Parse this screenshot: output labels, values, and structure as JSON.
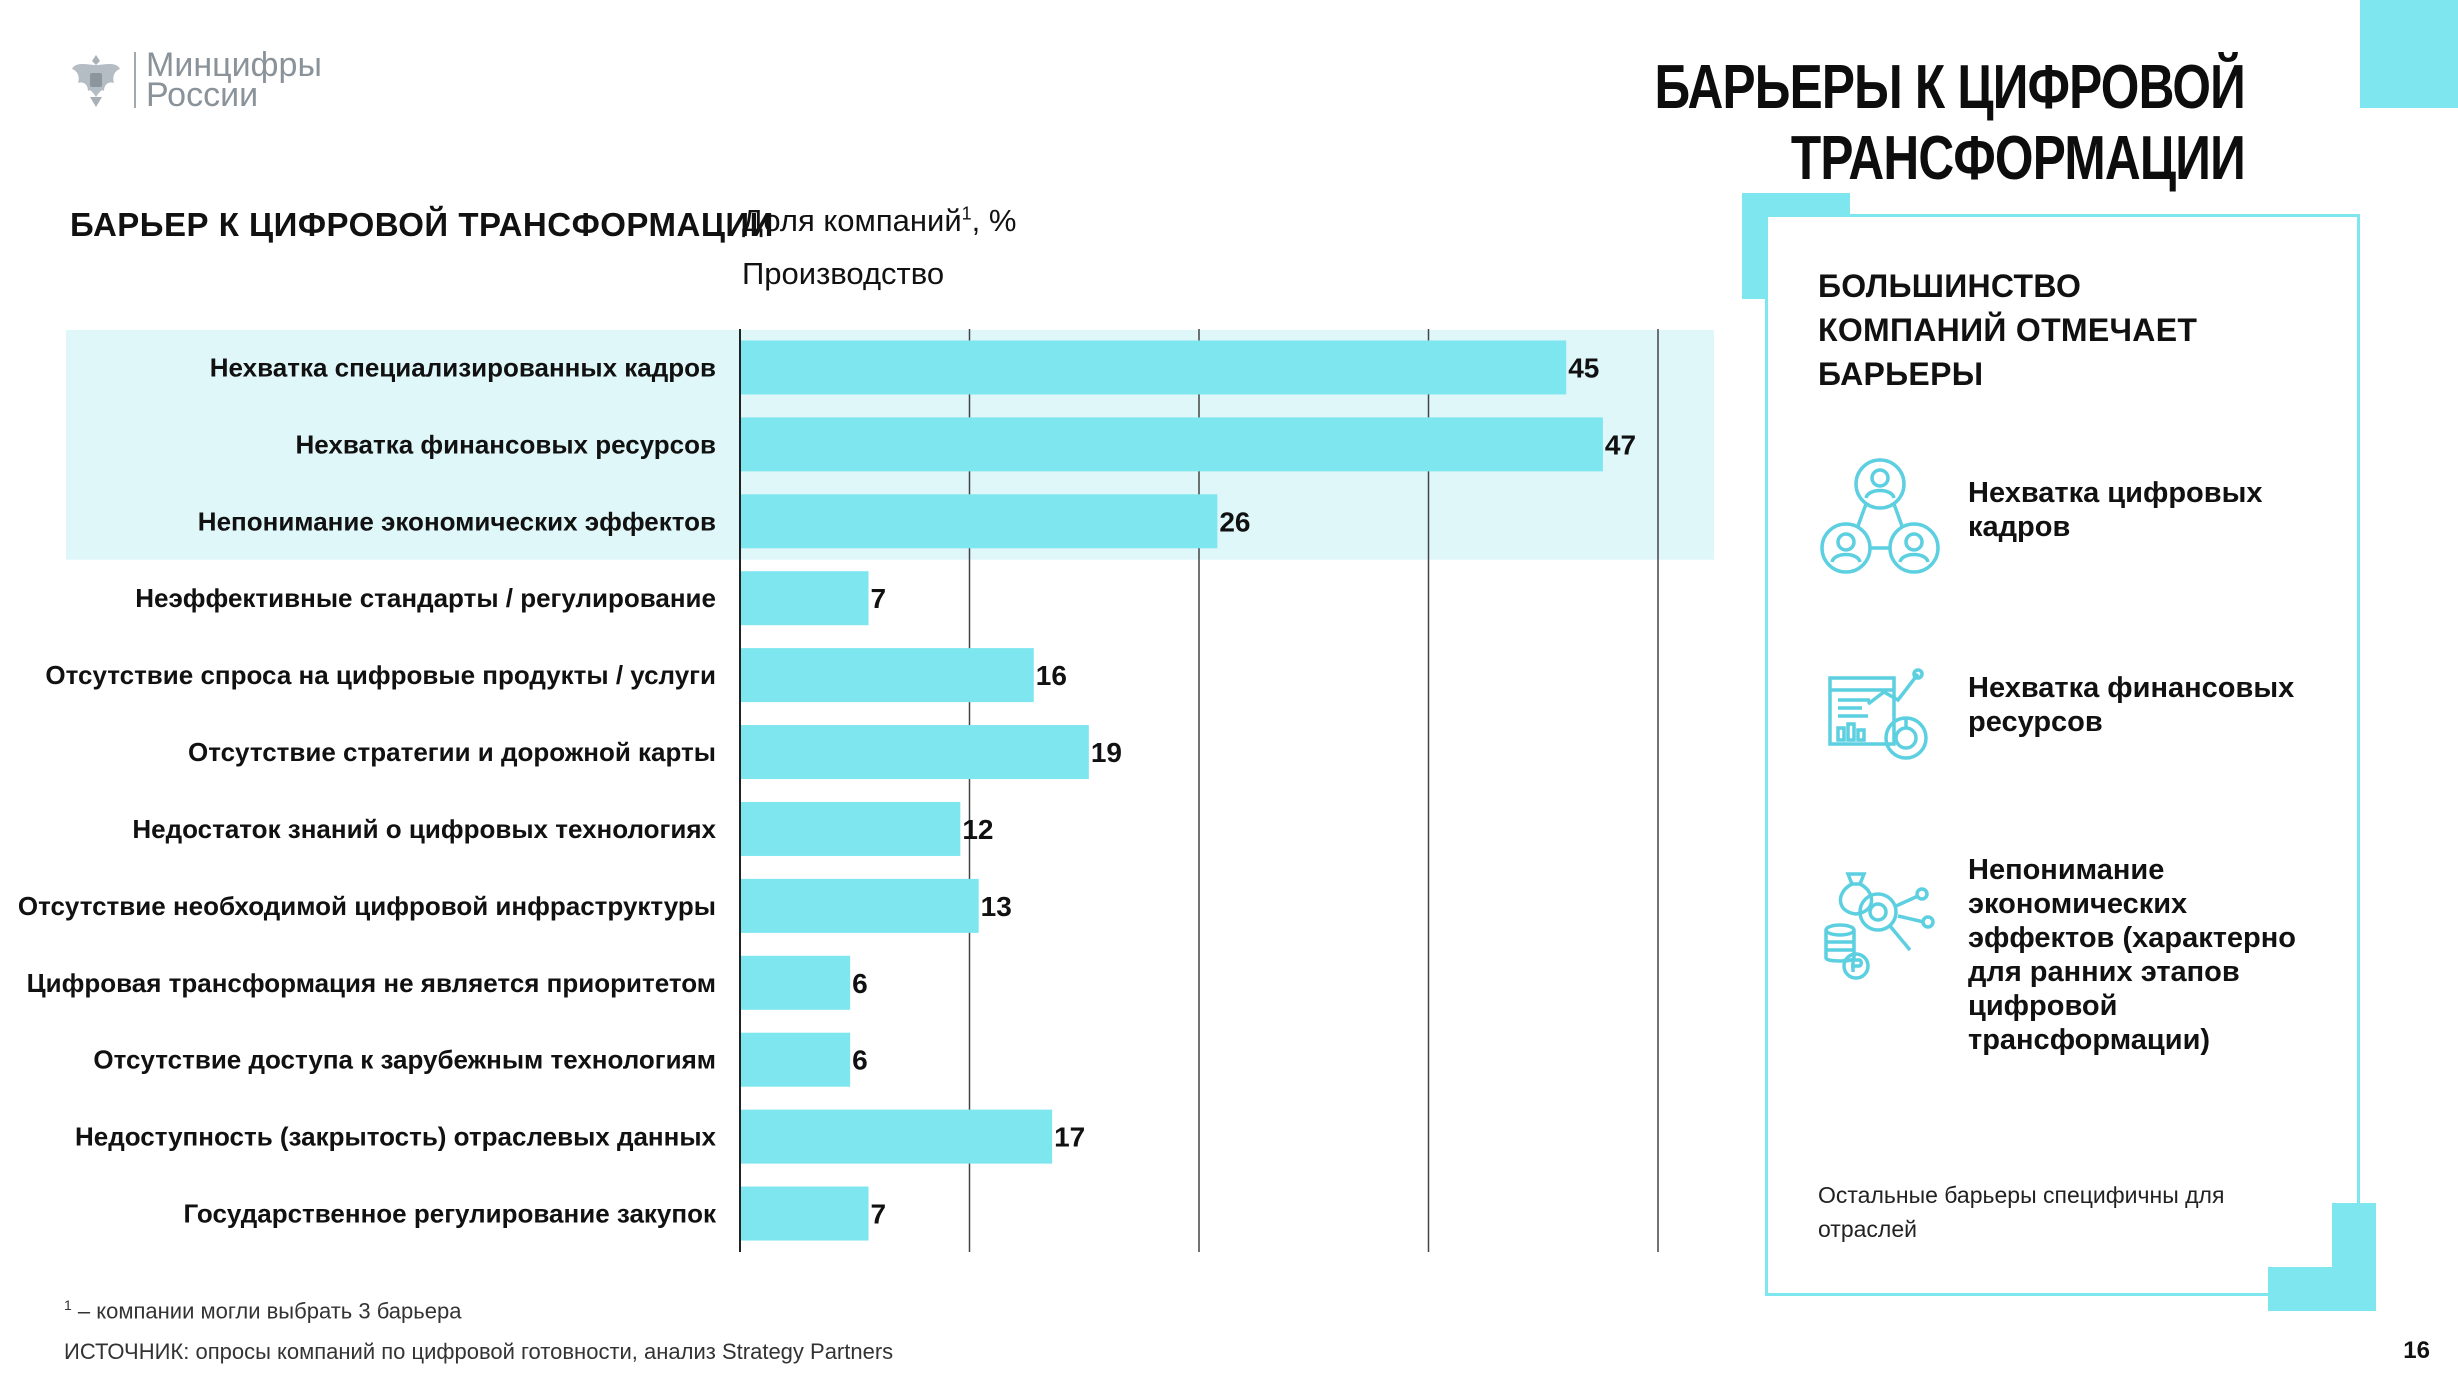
{
  "header": {
    "logo_line1": "Минцифры",
    "logo_line2": "России",
    "title": "БАРЬЕРЫ К ЦИФРОВОЙ ТРАНСФОРМАЦИИ"
  },
  "colors": {
    "accent": "#7de6ee",
    "bar": "#7de6ee",
    "highlight_band": "#e0f7f9",
    "grid": "#444444",
    "icon": "#5ccfe0"
  },
  "chart_data": {
    "type": "bar",
    "orientation": "horizontal",
    "category_header": "БАРЬЕР К ЦИФРОВОЙ ТРАНСФОРМАЦИИ",
    "value_header": "Доля компаний",
    "value_header_sup": "1",
    "value_header_unit": ", %",
    "sector": "Производство",
    "categories": [
      "Нехватка специализированных кадров",
      "Нехватка финансовых ресурсов",
      "Непонимание экономических эффектов",
      "Неэффективные стандарты / регулирование",
      "Отсутствие спроса на цифровые продукты / услуги",
      "Отсутствие стратегии и дорожной карты",
      "Недостаток знаний о цифровых технологиях",
      "Отсутствие необходимой цифровой инфраструктуры",
      "Цифровая трансформация не является приоритетом",
      "Отсутствие доступа к зарубежным технологиям",
      "Недоступность (закрытость) отраслевых данных",
      "Государственное регулирование закупок"
    ],
    "values": [
      45,
      47,
      26,
      7,
      16,
      19,
      12,
      13,
      6,
      6,
      17,
      7
    ],
    "highlighted": [
      0,
      1,
      2
    ],
    "xlim": [
      0,
      50
    ],
    "grid_step": 12.5
  },
  "panel": {
    "title": "БОЛЬШИНСТВО КОМПАНИЙ ОТМЕЧАЕТ БАРЬЕРЫ",
    "items": [
      {
        "icon": "people-network-icon",
        "text": "Нехватка цифровых кадров"
      },
      {
        "icon": "finance-dashboard-icon",
        "text": "Нехватка финансовых ресурсов"
      },
      {
        "icon": "money-analysis-icon",
        "text": "Непонимание экономических эффектов (характерно для ранних этапов цифровой трансформации)"
      }
    ],
    "note": "Остальные барьеры специфичны для отраслей"
  },
  "footer": {
    "footnote_sup": "1",
    "footnote": " – компании могли выбрать 3 барьера",
    "source": "ИСТОЧНИК: опросы компаний по цифровой готовности, анализ Strategy Partners",
    "page_number": "16"
  }
}
